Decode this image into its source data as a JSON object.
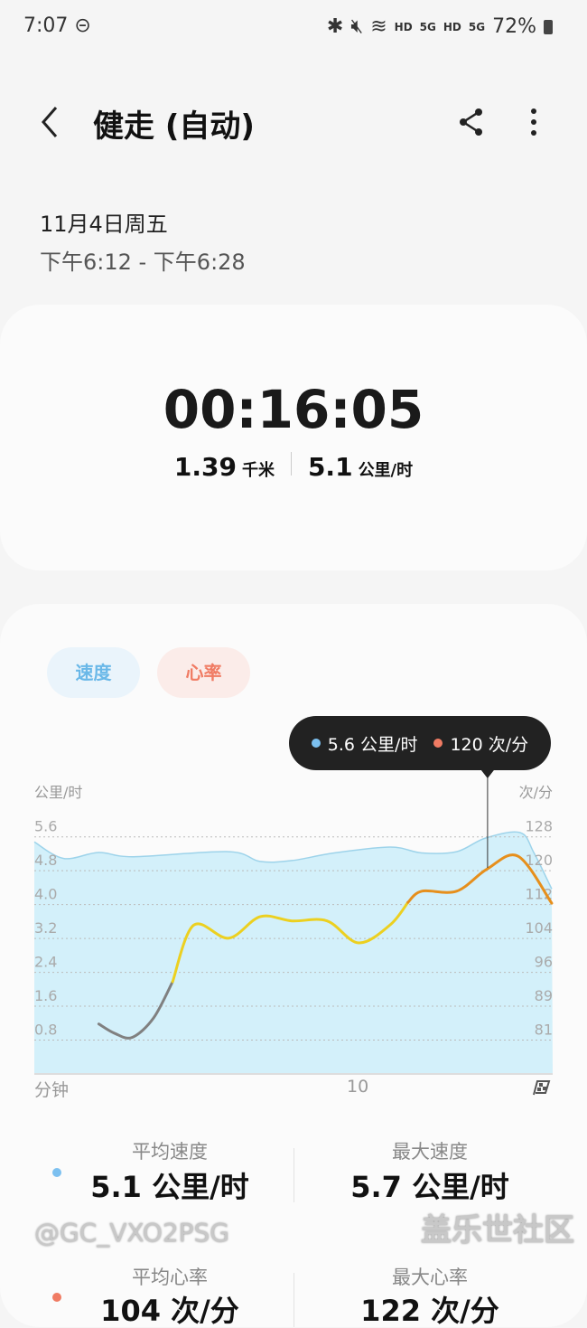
{
  "status_bar": {
    "time": "7:07",
    "battery": "72%",
    "hd1": "HD",
    "g1": "5G",
    "hd2": "HD",
    "g2": "5G"
  },
  "header": {
    "title": "健走 (自动)"
  },
  "session": {
    "date": "11月4日周五",
    "time_range": "下午6:12 - 下午6:28"
  },
  "summary": {
    "duration": "00:16:05",
    "distance": "1.39",
    "distance_unit": "千米",
    "speed": "5.1",
    "speed_unit": "公里/时"
  },
  "tabs": [
    {
      "label": "速度",
      "active": true
    },
    {
      "label": "心率",
      "active": true
    }
  ],
  "tooltip": {
    "speed": "5.6 公里/时",
    "hr": "120 次/分"
  },
  "colors": {
    "speed": "#7cc0f0",
    "hr": "#f07b63",
    "speed_fill": "#d3f0fa",
    "hr_low": "#808080",
    "hr_mid": "#ecd020",
    "hr_high": "#e68f1c"
  },
  "chart_data": {
    "type": "line",
    "xlabel": "分钟",
    "ylabel_left": "公里/时",
    "ylabel_right": "次/分",
    "x_ticks": [
      "10"
    ],
    "x_range": [
      0,
      16.08
    ],
    "y_left_ticks": [
      "5.6",
      "4.8",
      "4.0",
      "3.2",
      "2.4",
      "1.6",
      "0.8"
    ],
    "y_left_range": [
      0,
      5.6
    ],
    "y_right_ticks": [
      "128",
      "120",
      "112",
      "104",
      "96",
      "89",
      "81"
    ],
    "y_right_range": [
      73,
      128
    ],
    "grid": "dotted",
    "marker_x": 14.06,
    "speed": {
      "x": [
        0,
        0.91,
        2.0,
        3.08,
        6.02,
        7.0,
        7.99,
        9.3,
        11.04,
        12.02,
        13.1,
        13.99,
        15.07,
        15.5,
        16.05
      ],
      "y": [
        5.48,
        5.09,
        5.23,
        5.13,
        5.25,
        5.02,
        5.04,
        5.22,
        5.36,
        5.22,
        5.25,
        5.57,
        5.7,
        5.22,
        4.37
      ]
    },
    "heart_rate": [
      {
        "zone": "low",
        "x": [
          2.0,
          2.5,
          3.04,
          3.7,
          4.29
        ],
        "y": [
          84.6,
          82.4,
          81.5,
          86,
          94.4
        ]
      },
      {
        "zone": "mid",
        "x": [
          4.29,
          4.94,
          6.03,
          7.01,
          7.99,
          9.08,
          10.06,
          11.04,
          11.59
        ],
        "y": [
          94.4,
          107.5,
          104.5,
          109.5,
          108.5,
          108.5,
          103.4,
          107.6,
          112.8
        ]
      },
      {
        "zone": "high",
        "x": [
          11.59,
          12.02,
          13.1,
          14.04,
          15.01,
          16.05
        ],
        "y": [
          112.8,
          115.4,
          115.4,
          120.5,
          123.5,
          112.6
        ]
      }
    ]
  },
  "metrics": [
    {
      "label": "平均速度",
      "value": "5.1 公里/时"
    },
    {
      "label": "最大速度",
      "value": "5.7 公里/时"
    },
    {
      "label": "平均心率",
      "value": "104 次/分"
    },
    {
      "label": "最大心率",
      "value": "122 次/分"
    }
  ],
  "watermark": {
    "line1": "盖乐世社区",
    "line2": "@GC_VXO2PSG"
  }
}
